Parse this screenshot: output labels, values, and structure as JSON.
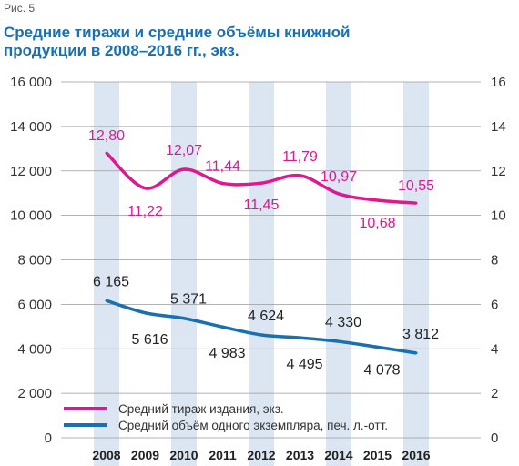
{
  "figure_label": "Рис. 5",
  "title_line1": "Средние тиражи и средние объёмы книжной",
  "title_line2": "продукции в 2008–2016 гг., экз.",
  "colors": {
    "tirazh": "#e0178f",
    "obem": "#1a6fb0",
    "band": "#dbe6f2",
    "title": "#1a6fb0"
  },
  "chart_data": {
    "type": "line",
    "categories": [
      "2008",
      "2009",
      "2010",
      "2011",
      "2012",
      "2013",
      "2014",
      "2015",
      "2016"
    ],
    "y_left": {
      "min": 0,
      "max": 16000,
      "ticks": [
        "0",
        "2 000",
        "4 000",
        "6 000",
        "8 000",
        "10 000",
        "12 000",
        "14 000",
        "16 000"
      ]
    },
    "y_right": {
      "min": 0,
      "max": 16,
      "ticks": [
        "0",
        "2",
        "4",
        "6",
        "8",
        "10",
        "12",
        "14",
        "16"
      ]
    },
    "series": [
      {
        "name": "Средний тираж издания, экз.",
        "axis": "left",
        "values": [
          12800,
          11220,
          12070,
          11440,
          11450,
          11790,
          10970,
          10680,
          10550
        ],
        "labels": [
          "12,80",
          "11,22",
          "12,07",
          "11,44",
          "11,45",
          "11,79",
          "10,97",
          "10,68",
          "10,55"
        ]
      },
      {
        "name": "Средний объём одного экземпляра, печ. л.-отт.",
        "axis": "right",
        "values": [
          6.165,
          5.616,
          5.371,
          4.983,
          4.624,
          4.495,
          4.33,
          4.078,
          3.812
        ],
        "labels": [
          "6 165",
          "5 616",
          "5 371",
          "4 983",
          "4 624",
          "4 495",
          "4 330",
          "4 078",
          "3 812"
        ]
      }
    ],
    "grid": true,
    "legend": "bottom-left"
  }
}
